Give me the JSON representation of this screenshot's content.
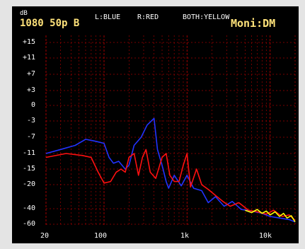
{
  "header": {
    "unit": "dB",
    "format": "1080 50p B",
    "legend_left": "L:BLUE",
    "legend_right": "R:RED",
    "legend_both": "BOTH:YELLOW",
    "monitor": "Moni:DM"
  },
  "colors": {
    "background": "#000000",
    "frame": "#e4e4e4",
    "grid": "#a00000",
    "left_channel": "#2233ff",
    "right_channel": "#ff1010",
    "both_channels": "#ffff00",
    "header_text": "#ffe27a"
  },
  "chart_data": {
    "type": "line",
    "xlabel": "",
    "ylabel": "dB",
    "x_scale": "log",
    "xlim": [
      20,
      20000
    ],
    "y_ticks": [
      "+15",
      "+11",
      "+7",
      "+3",
      "0",
      "-3",
      "-7",
      "-11",
      "-15",
      "-20",
      "-40",
      "-60"
    ],
    "x_ticks": [
      {
        "label": "20",
        "freq": 20
      },
      {
        "label": "100",
        "freq": 100
      },
      {
        "label": "1k",
        "freq": 1000
      },
      {
        "label": "10k",
        "freq": 10000
      }
    ],
    "grid": true,
    "legend": "top",
    "series": [
      {
        "name": "L",
        "color": "#2233ff",
        "points": [
          [
            20,
            -11
          ],
          [
            30,
            -10
          ],
          [
            45,
            -9
          ],
          [
            60,
            -7.5
          ],
          [
            80,
            -8
          ],
          [
            100,
            -8.5
          ],
          [
            115,
            -12
          ],
          [
            130,
            -13.5
          ],
          [
            150,
            -13
          ],
          [
            180,
            -15
          ],
          [
            200,
            -14
          ],
          [
            230,
            -9
          ],
          [
            280,
            -7
          ],
          [
            330,
            -4
          ],
          [
            400,
            -2.5
          ],
          [
            440,
            -10
          ],
          [
            500,
            -14
          ],
          [
            560,
            -19
          ],
          [
            600,
            -23
          ],
          [
            700,
            -17
          ],
          [
            850,
            -21
          ],
          [
            1000,
            -17
          ],
          [
            1200,
            -23
          ],
          [
            1500,
            -25
          ],
          [
            1800,
            -35
          ],
          [
            2200,
            -30
          ],
          [
            2800,
            -38
          ],
          [
            3500,
            -34
          ],
          [
            4500,
            -41
          ],
          [
            6000,
            -43
          ],
          [
            8000,
            -46
          ],
          [
            10000,
            -50
          ],
          [
            13000,
            -52
          ],
          [
            17000,
            -54
          ],
          [
            20000,
            -57
          ]
        ]
      },
      {
        "name": "R",
        "color": "#ff1010",
        "points": [
          [
            20,
            -12
          ],
          [
            35,
            -11
          ],
          [
            55,
            -11.5
          ],
          [
            70,
            -12
          ],
          [
            85,
            -16
          ],
          [
            100,
            -19.5
          ],
          [
            120,
            -19
          ],
          [
            140,
            -16
          ],
          [
            160,
            -15
          ],
          [
            180,
            -16
          ],
          [
            200,
            -12
          ],
          [
            230,
            -11
          ],
          [
            260,
            -17
          ],
          [
            290,
            -12
          ],
          [
            320,
            -10
          ],
          [
            360,
            -16
          ],
          [
            420,
            -18
          ],
          [
            500,
            -12
          ],
          [
            560,
            -11
          ],
          [
            620,
            -17
          ],
          [
            700,
            -19
          ],
          [
            800,
            -19
          ],
          [
            900,
            -14
          ],
          [
            1000,
            -11
          ],
          [
            1100,
            -22
          ],
          [
            1300,
            -15
          ],
          [
            1500,
            -20
          ],
          [
            1800,
            -24
          ],
          [
            2200,
            -29
          ],
          [
            2700,
            -34
          ],
          [
            3300,
            -38
          ],
          [
            4200,
            -35
          ],
          [
            5500,
            -42
          ],
          [
            7000,
            -44
          ],
          [
            9000,
            -47
          ],
          [
            11000,
            -42
          ],
          [
            14000,
            -50
          ],
          [
            17000,
            -48
          ],
          [
            20000,
            -55
          ]
        ]
      },
      {
        "name": "BOTH",
        "color": "#ffff00",
        "points": [
          [
            5000,
            -42
          ],
          [
            6000,
            -45
          ],
          [
            7000,
            -41
          ],
          [
            8000,
            -46
          ],
          [
            9000,
            -43
          ],
          [
            10000,
            -48
          ],
          [
            11500,
            -44
          ],
          [
            13000,
            -50
          ],
          [
            14500,
            -46
          ],
          [
            16000,
            -52
          ],
          [
            18000,
            -49
          ],
          [
            20000,
            -57
          ]
        ]
      }
    ]
  }
}
